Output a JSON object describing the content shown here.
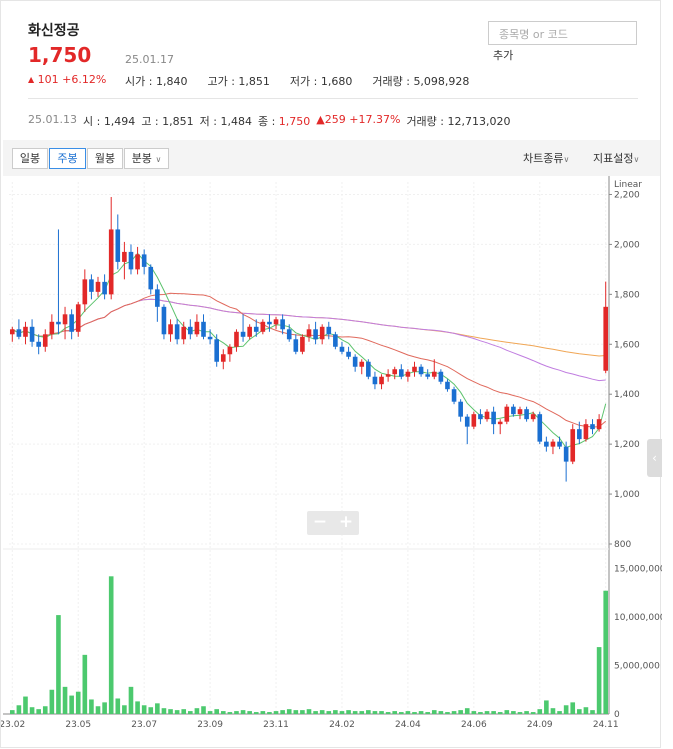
{
  "header": {
    "stock_name": "화신정공",
    "price": "1,750",
    "date": "25.01.17",
    "change_arrow": "▲",
    "change_value": "101",
    "change_pct": "+6.12%",
    "stats": [
      {
        "label": "시가",
        "value": "1,840"
      },
      {
        "label": "고가",
        "value": "1,851"
      },
      {
        "label": "저가",
        "value": "1,680"
      },
      {
        "label": "거래량",
        "value": "5,098,928"
      }
    ],
    "search_placeholder": "종목명 or 코드",
    "add_label": "추가"
  },
  "history": {
    "date": "25.01.13",
    "open_label": "시",
    "open": "1,494",
    "high_label": "고",
    "high": "1,851",
    "low_label": "저",
    "low": "1,484",
    "close_label": "종",
    "close": "1,750",
    "change_arrow": "▲",
    "change": "259",
    "change_pct": "+17.37%",
    "volume_label": "거래량",
    "volume": "12,713,020"
  },
  "toolbar": {
    "periods": [
      "일봉",
      "주봉",
      "월봉",
      "분봉"
    ],
    "active_period": "주봉",
    "chart_type": "차트종류",
    "indicator": "지표설정",
    "chevron": "chevron-down-icon"
  },
  "colors": {
    "up": "#e22828",
    "down": "#1a6fd1",
    "ma5": "#5cc36d",
    "ma20": "#e0695c",
    "ma60": "#c07de0",
    "ma120": "#f0a655",
    "volume": "#4cc96e",
    "accent": "#3a8ee6"
  },
  "chart_data": {
    "type": "candlestick",
    "scale_label": "Linear",
    "y_ticks": [
      800,
      1000,
      1200,
      1400,
      1600,
      1800,
      2000,
      2200
    ],
    "y_tick_labels": [
      "800",
      "1,000",
      "1,200",
      "1,400",
      "1,600",
      "1,800",
      "2,000",
      "2,200"
    ],
    "ylim": [
      800,
      2250
    ],
    "volume_ticks": [
      0,
      5000000,
      10000000,
      15000000
    ],
    "volume_tick_labels": [
      "0",
      "5,000,000",
      "10,000,000",
      "15,000,000"
    ],
    "volume_ylim": [
      0,
      16500000
    ],
    "x_labels": [
      "23.02",
      "23.05",
      "23.07",
      "23.09",
      "23.11",
      "24.02",
      "24.04",
      "24.06",
      "24.09",
      "24.11"
    ],
    "x_label_index": [
      0,
      10,
      20,
      30,
      40,
      50,
      60,
      70,
      80,
      90
    ],
    "candles": [
      {
        "o": 1640,
        "h": 1670,
        "l": 1610,
        "c": 1660,
        "v": 400000
      },
      {
        "o": 1660,
        "h": 1700,
        "l": 1620,
        "c": 1630,
        "v": 900000
      },
      {
        "o": 1630,
        "h": 1690,
        "l": 1600,
        "c": 1670,
        "v": 1800000
      },
      {
        "o": 1670,
        "h": 1700,
        "l": 1590,
        "c": 1610,
        "v": 700000
      },
      {
        "o": 1610,
        "h": 1640,
        "l": 1560,
        "c": 1590,
        "v": 500000
      },
      {
        "o": 1590,
        "h": 1660,
        "l": 1570,
        "c": 1640,
        "v": 800000
      },
      {
        "o": 1640,
        "h": 1720,
        "l": 1620,
        "c": 1690,
        "v": 2500000
      },
      {
        "o": 1690,
        "h": 2060,
        "l": 1640,
        "c": 1680,
        "v": 10200000
      },
      {
        "o": 1680,
        "h": 1750,
        "l": 1620,
        "c": 1720,
        "v": 2800000
      },
      {
        "o": 1720,
        "h": 1740,
        "l": 1620,
        "c": 1650,
        "v": 1900000
      },
      {
        "o": 1650,
        "h": 1770,
        "l": 1630,
        "c": 1760,
        "v": 2300000
      },
      {
        "o": 1760,
        "h": 1900,
        "l": 1730,
        "c": 1860,
        "v": 6100000
      },
      {
        "o": 1860,
        "h": 1880,
        "l": 1780,
        "c": 1810,
        "v": 1500000
      },
      {
        "o": 1810,
        "h": 1870,
        "l": 1790,
        "c": 1850,
        "v": 800000
      },
      {
        "o": 1850,
        "h": 1880,
        "l": 1780,
        "c": 1800,
        "v": 1200000
      },
      {
        "o": 1800,
        "h": 2190,
        "l": 1780,
        "c": 2060,
        "v": 14200000
      },
      {
        "o": 2060,
        "h": 2120,
        "l": 1900,
        "c": 1930,
        "v": 1600000
      },
      {
        "o": 1930,
        "h": 2010,
        "l": 1860,
        "c": 1970,
        "v": 900000
      },
      {
        "o": 1970,
        "h": 2000,
        "l": 1880,
        "c": 1900,
        "v": 2800000
      },
      {
        "o": 1900,
        "h": 1990,
        "l": 1880,
        "c": 1960,
        "v": 1300000
      },
      {
        "o": 1960,
        "h": 1980,
        "l": 1880,
        "c": 1910,
        "v": 900000
      },
      {
        "o": 1910,
        "h": 1920,
        "l": 1800,
        "c": 1820,
        "v": 700000
      },
      {
        "o": 1820,
        "h": 1840,
        "l": 1690,
        "c": 1750,
        "v": 1100000
      },
      {
        "o": 1750,
        "h": 1760,
        "l": 1620,
        "c": 1640,
        "v": 600000
      },
      {
        "o": 1640,
        "h": 1700,
        "l": 1610,
        "c": 1680,
        "v": 500000
      },
      {
        "o": 1680,
        "h": 1700,
        "l": 1600,
        "c": 1620,
        "v": 400000
      },
      {
        "o": 1620,
        "h": 1690,
        "l": 1600,
        "c": 1670,
        "v": 500000
      },
      {
        "o": 1670,
        "h": 1700,
        "l": 1620,
        "c": 1640,
        "v": 300000
      },
      {
        "o": 1640,
        "h": 1720,
        "l": 1630,
        "c": 1690,
        "v": 600000
      },
      {
        "o": 1690,
        "h": 1720,
        "l": 1620,
        "c": 1630,
        "v": 800000
      },
      {
        "o": 1630,
        "h": 1660,
        "l": 1600,
        "c": 1620,
        "v": 300000
      },
      {
        "o": 1620,
        "h": 1640,
        "l": 1510,
        "c": 1530,
        "v": 500000
      },
      {
        "o": 1530,
        "h": 1580,
        "l": 1500,
        "c": 1560,
        "v": 300000
      },
      {
        "o": 1560,
        "h": 1600,
        "l": 1530,
        "c": 1590,
        "v": 200000
      },
      {
        "o": 1590,
        "h": 1660,
        "l": 1570,
        "c": 1650,
        "v": 300000
      },
      {
        "o": 1650,
        "h": 1720,
        "l": 1610,
        "c": 1630,
        "v": 400000
      },
      {
        "o": 1630,
        "h": 1680,
        "l": 1620,
        "c": 1670,
        "v": 300000
      },
      {
        "o": 1670,
        "h": 1700,
        "l": 1630,
        "c": 1650,
        "v": 200000
      },
      {
        "o": 1650,
        "h": 1700,
        "l": 1640,
        "c": 1690,
        "v": 300000
      },
      {
        "o": 1690,
        "h": 1720,
        "l": 1650,
        "c": 1680,
        "v": 200000
      },
      {
        "o": 1680,
        "h": 1710,
        "l": 1660,
        "c": 1700,
        "v": 300000
      },
      {
        "o": 1700,
        "h": 1720,
        "l": 1640,
        "c": 1660,
        "v": 400000
      },
      {
        "o": 1660,
        "h": 1680,
        "l": 1610,
        "c": 1620,
        "v": 500000
      },
      {
        "o": 1620,
        "h": 1640,
        "l": 1560,
        "c": 1570,
        "v": 400000
      },
      {
        "o": 1570,
        "h": 1640,
        "l": 1560,
        "c": 1630,
        "v": 400000
      },
      {
        "o": 1630,
        "h": 1680,
        "l": 1610,
        "c": 1660,
        "v": 500000
      },
      {
        "o": 1660,
        "h": 1690,
        "l": 1600,
        "c": 1620,
        "v": 300000
      },
      {
        "o": 1620,
        "h": 1680,
        "l": 1600,
        "c": 1670,
        "v": 400000
      },
      {
        "o": 1670,
        "h": 1690,
        "l": 1620,
        "c": 1640,
        "v": 300000
      },
      {
        "o": 1640,
        "h": 1650,
        "l": 1580,
        "c": 1590,
        "v": 400000
      },
      {
        "o": 1590,
        "h": 1610,
        "l": 1560,
        "c": 1570,
        "v": 300000
      },
      {
        "o": 1570,
        "h": 1590,
        "l": 1540,
        "c": 1550,
        "v": 400000
      },
      {
        "o": 1550,
        "h": 1560,
        "l": 1490,
        "c": 1510,
        "v": 300000
      },
      {
        "o": 1510,
        "h": 1540,
        "l": 1480,
        "c": 1530,
        "v": 300000
      },
      {
        "o": 1530,
        "h": 1540,
        "l": 1460,
        "c": 1470,
        "v": 400000
      },
      {
        "o": 1470,
        "h": 1490,
        "l": 1420,
        "c": 1440,
        "v": 300000
      },
      {
        "o": 1440,
        "h": 1480,
        "l": 1420,
        "c": 1470,
        "v": 300000
      },
      {
        "o": 1470,
        "h": 1500,
        "l": 1450,
        "c": 1480,
        "v": 200000
      },
      {
        "o": 1480,
        "h": 1510,
        "l": 1460,
        "c": 1500,
        "v": 300000
      },
      {
        "o": 1500,
        "h": 1520,
        "l": 1460,
        "c": 1470,
        "v": 200000
      },
      {
        "o": 1470,
        "h": 1500,
        "l": 1450,
        "c": 1490,
        "v": 300000
      },
      {
        "o": 1490,
        "h": 1530,
        "l": 1470,
        "c": 1510,
        "v": 200000
      },
      {
        "o": 1510,
        "h": 1520,
        "l": 1470,
        "c": 1480,
        "v": 300000
      },
      {
        "o": 1480,
        "h": 1500,
        "l": 1460,
        "c": 1470,
        "v": 200000
      },
      {
        "o": 1470,
        "h": 1540,
        "l": 1460,
        "c": 1490,
        "v": 400000
      },
      {
        "o": 1490,
        "h": 1500,
        "l": 1440,
        "c": 1450,
        "v": 300000
      },
      {
        "o": 1450,
        "h": 1460,
        "l": 1410,
        "c": 1420,
        "v": 200000
      },
      {
        "o": 1420,
        "h": 1430,
        "l": 1360,
        "c": 1370,
        "v": 300000
      },
      {
        "o": 1370,
        "h": 1380,
        "l": 1290,
        "c": 1310,
        "v": 400000
      },
      {
        "o": 1310,
        "h": 1320,
        "l": 1200,
        "c": 1270,
        "v": 600000
      },
      {
        "o": 1270,
        "h": 1330,
        "l": 1260,
        "c": 1320,
        "v": 300000
      },
      {
        "o": 1320,
        "h": 1340,
        "l": 1280,
        "c": 1300,
        "v": 200000
      },
      {
        "o": 1300,
        "h": 1340,
        "l": 1290,
        "c": 1330,
        "v": 300000
      },
      {
        "o": 1330,
        "h": 1350,
        "l": 1240,
        "c": 1280,
        "v": 300000
      },
      {
        "o": 1280,
        "h": 1300,
        "l": 1240,
        "c": 1290,
        "v": 200000
      },
      {
        "o": 1290,
        "h": 1360,
        "l": 1280,
        "c": 1350,
        "v": 400000
      },
      {
        "o": 1350,
        "h": 1360,
        "l": 1310,
        "c": 1320,
        "v": 300000
      },
      {
        "o": 1320,
        "h": 1350,
        "l": 1300,
        "c": 1340,
        "v": 200000
      },
      {
        "o": 1340,
        "h": 1350,
        "l": 1290,
        "c": 1300,
        "v": 300000
      },
      {
        "o": 1300,
        "h": 1330,
        "l": 1290,
        "c": 1320,
        "v": 200000
      },
      {
        "o": 1320,
        "h": 1330,
        "l": 1200,
        "c": 1210,
        "v": 500000
      },
      {
        "o": 1210,
        "h": 1230,
        "l": 1170,
        "c": 1190,
        "v": 1400000
      },
      {
        "o": 1190,
        "h": 1220,
        "l": 1160,
        "c": 1210,
        "v": 600000
      },
      {
        "o": 1210,
        "h": 1230,
        "l": 1180,
        "c": 1190,
        "v": 300000
      },
      {
        "o": 1190,
        "h": 1210,
        "l": 1050,
        "c": 1130,
        "v": 900000
      },
      {
        "o": 1130,
        "h": 1280,
        "l": 1120,
        "c": 1260,
        "v": 1200000
      },
      {
        "o": 1260,
        "h": 1290,
        "l": 1200,
        "c": 1220,
        "v": 500000
      },
      {
        "o": 1220,
        "h": 1300,
        "l": 1210,
        "c": 1280,
        "v": 700000
      },
      {
        "o": 1280,
        "h": 1300,
        "l": 1240,
        "c": 1260,
        "v": 400000
      },
      {
        "o": 1260,
        "h": 1320,
        "l": 1250,
        "c": 1300,
        "v": 6900000
      },
      {
        "o": 1494,
        "h": 1851,
        "l": 1484,
        "c": 1750,
        "v": 12713020
      }
    ]
  }
}
